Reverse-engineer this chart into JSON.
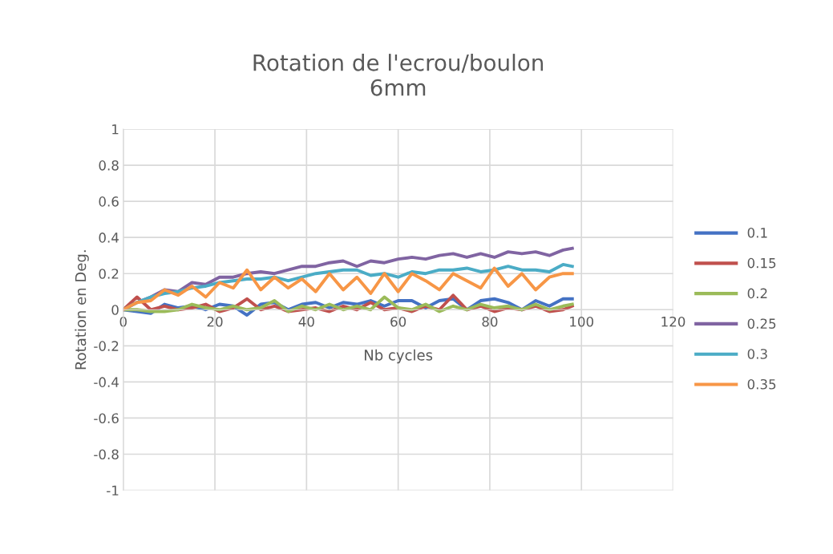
{
  "chart_data": {
    "type": "line",
    "title": "Rotation de l'ecrou/boulon\n6mm",
    "xlabel": "Nb cycles",
    "ylabel": "Rotation en Deg.",
    "x": [
      0,
      3,
      6,
      9,
      12,
      15,
      18,
      21,
      24,
      27,
      30,
      33,
      36,
      39,
      42,
      45,
      48,
      51,
      54,
      57,
      60,
      63,
      66,
      69,
      72,
      75,
      78,
      81,
      84,
      87,
      90,
      93,
      96,
      98
    ],
    "xlim": [
      0,
      120
    ],
    "xticks": [
      0,
      20,
      40,
      60,
      80,
      100,
      120
    ],
    "ylim": [
      -1,
      1
    ],
    "yticks": [
      -1,
      -0.8,
      -0.6,
      -0.4,
      -0.2,
      0,
      0.2,
      0.4,
      0.6,
      0.8,
      1
    ],
    "grid": true,
    "legend": "right",
    "marker": "none",
    "line_style": "solid",
    "series": [
      {
        "name": "0.1",
        "color": "#4472c4",
        "values": [
          0,
          -0.01,
          -0.02,
          0.03,
          0.01,
          0.02,
          0.0,
          0.03,
          0.02,
          -0.03,
          0.03,
          0.04,
          0.0,
          0.03,
          0.04,
          0.01,
          0.04,
          0.03,
          0.05,
          0.02,
          0.05,
          0.05,
          0.01,
          0.05,
          0.06,
          0.0,
          0.05,
          0.06,
          0.04,
          0.0,
          0.05,
          0.02,
          0.06,
          0.06
        ]
      },
      {
        "name": "0.15",
        "color": "#c0504d",
        "values": [
          0,
          0.07,
          0.0,
          0.02,
          0.0,
          0.01,
          0.03,
          -0.01,
          0.01,
          0.06,
          0.0,
          0.02,
          -0.01,
          0.0,
          0.01,
          -0.01,
          0.02,
          0.0,
          0.04,
          0.0,
          0.01,
          -0.01,
          0.02,
          0.0,
          0.08,
          0.0,
          0.02,
          -0.01,
          0.01,
          0.0,
          0.02,
          -0.01,
          0.0,
          0.02
        ]
      },
      {
        "name": "0.2",
        "color": "#9bbb59",
        "values": [
          0,
          0.0,
          -0.01,
          -0.01,
          0.0,
          0.03,
          0.01,
          0.0,
          0.02,
          0.0,
          0.01,
          0.05,
          -0.01,
          0.02,
          0.0,
          0.03,
          0.0,
          0.02,
          0.0,
          0.07,
          0.01,
          0.0,
          0.03,
          -0.01,
          0.02,
          0.0,
          0.03,
          0.01,
          0.02,
          0.0,
          0.03,
          0.0,
          0.02,
          0.03
        ]
      },
      {
        "name": "0.25",
        "color": "#8064a2",
        "values": [
          0,
          0.04,
          0.07,
          0.11,
          0.1,
          0.15,
          0.14,
          0.18,
          0.18,
          0.2,
          0.21,
          0.2,
          0.22,
          0.24,
          0.24,
          0.26,
          0.27,
          0.24,
          0.27,
          0.26,
          0.28,
          0.29,
          0.28,
          0.3,
          0.31,
          0.29,
          0.31,
          0.29,
          0.32,
          0.31,
          0.32,
          0.3,
          0.33,
          0.34
        ]
      },
      {
        "name": "0.3",
        "color": "#4bacc6",
        "values": [
          0,
          0.04,
          0.07,
          0.09,
          0.1,
          0.12,
          0.13,
          0.15,
          0.16,
          0.17,
          0.17,
          0.18,
          0.16,
          0.18,
          0.2,
          0.21,
          0.22,
          0.22,
          0.19,
          0.2,
          0.18,
          0.21,
          0.2,
          0.22,
          0.22,
          0.23,
          0.21,
          0.22,
          0.24,
          0.22,
          0.22,
          0.21,
          0.25,
          0.24
        ]
      },
      {
        "name": "0.35",
        "color": "#f79646",
        "values": [
          0,
          0.04,
          0.05,
          0.11,
          0.08,
          0.13,
          0.07,
          0.15,
          0.12,
          0.22,
          0.11,
          0.18,
          0.12,
          0.17,
          0.1,
          0.2,
          0.11,
          0.18,
          0.09,
          0.2,
          0.1,
          0.2,
          0.16,
          0.11,
          0.2,
          0.16,
          0.12,
          0.23,
          0.13,
          0.2,
          0.11,
          0.18,
          0.2,
          0.2
        ]
      }
    ]
  }
}
